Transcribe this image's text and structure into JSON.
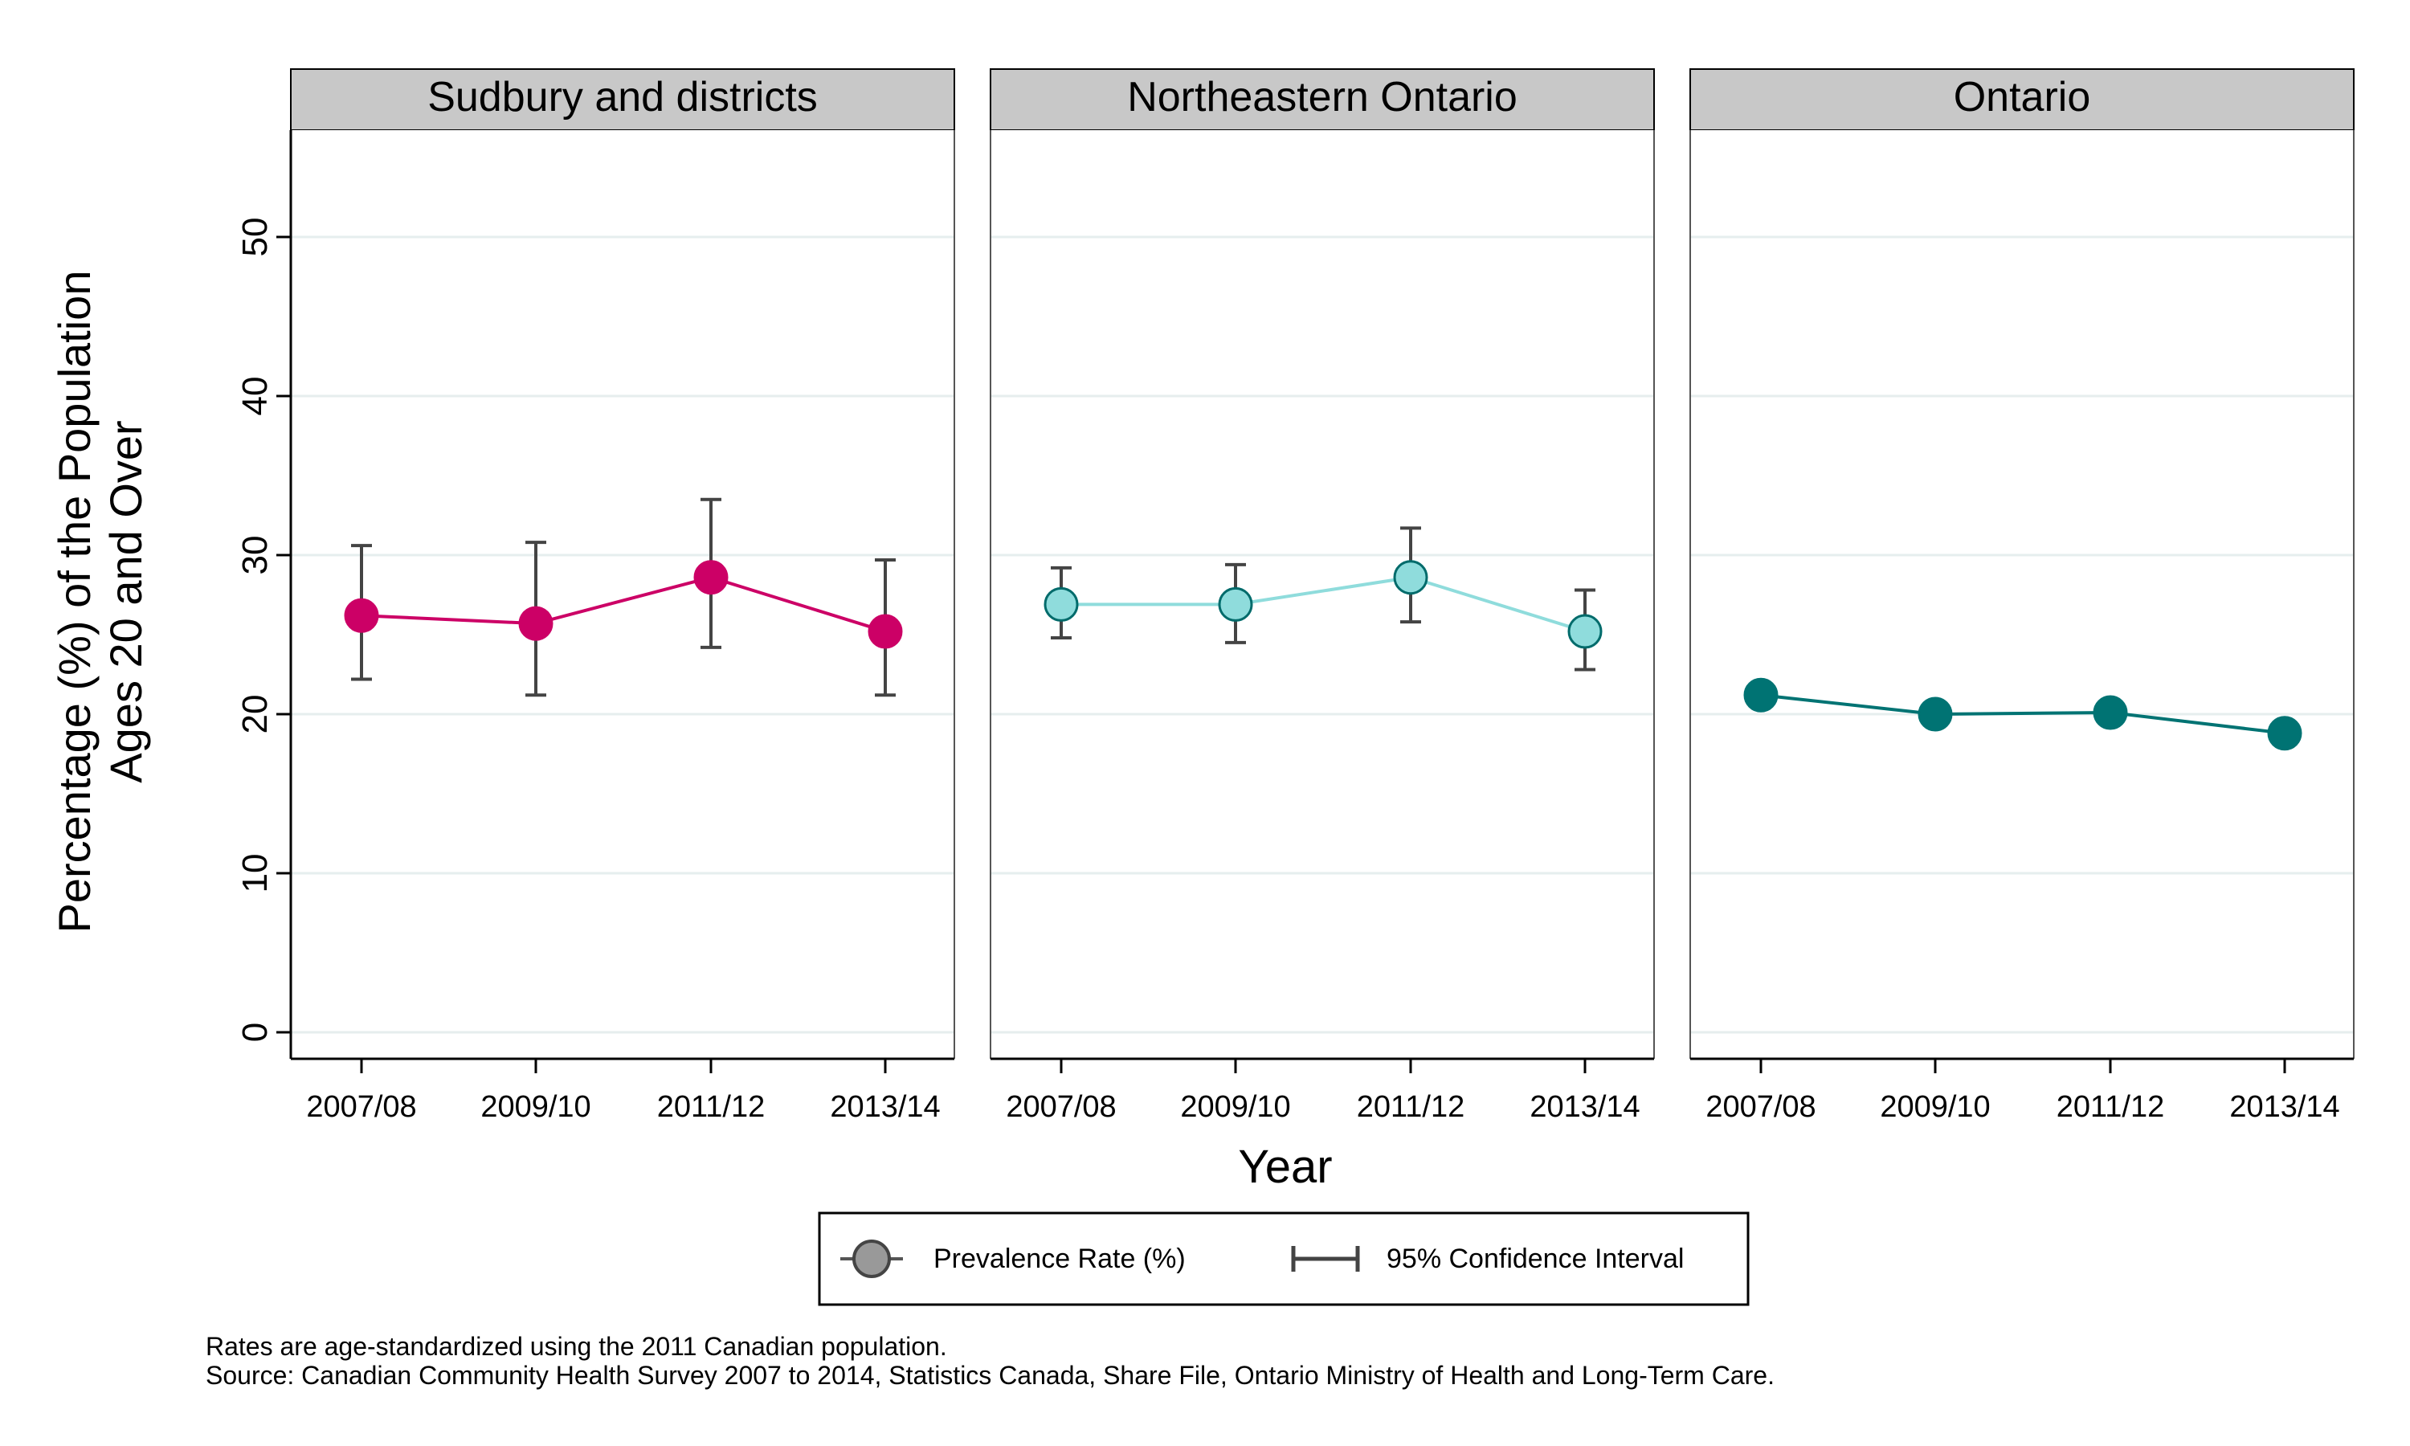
{
  "chart_data": {
    "type": "line",
    "panels": [
      {
        "name": "Sudbury and districts",
        "color": "#cc0066",
        "marker_fill": "#cc0066",
        "x": [
          "2007/08",
          "2009/10",
          "2011/12",
          "2013/14"
        ],
        "values": [
          26.2,
          25.7,
          28.6,
          25.2
        ],
        "ci_low": [
          22.2,
          21.2,
          24.2,
          21.2
        ],
        "ci_high": [
          30.6,
          30.8,
          33.5,
          29.7
        ]
      },
      {
        "name": "Northeastern Ontario",
        "color": "#8fdcdc",
        "marker_fill": "#8fdcdc",
        "marker_stroke": "#006b6b",
        "x": [
          "2007/08",
          "2009/10",
          "2011/12",
          "2013/14"
        ],
        "values": [
          26.9,
          26.9,
          28.6,
          25.2
        ],
        "ci_low": [
          24.8,
          24.5,
          25.8,
          22.8
        ],
        "ci_high": [
          29.2,
          29.4,
          31.7,
          27.8
        ]
      },
      {
        "name": "Ontario",
        "color": "#007373",
        "marker_fill": "#007373",
        "x": [
          "2007/08",
          "2009/10",
          "2011/12",
          "2013/14"
        ],
        "values": [
          21.2,
          20.0,
          20.1,
          18.8
        ],
        "ci_low": [],
        "ci_high": []
      }
    ],
    "xlabel": "Year",
    "ylabel_line1": "Percentage (%) of the Population",
    "ylabel_line2": "Ages 20 and Over",
    "ylim": [
      0,
      55
    ],
    "yticks": [
      0,
      10,
      20,
      30,
      40,
      50
    ],
    "grid": true,
    "legend": {
      "placement": "bottom",
      "entries": [
        "Prevalence Rate (%)",
        "95% Confidence Interval"
      ]
    }
  },
  "notes": {
    "line1": "Rates are age-standardized using the 2011 Canadian population.",
    "line2": "Source: Canadian Community Health Survey 2007 to 2014, Statistics Canada, Share File, Ontario Ministry of Health and Long-Term Care."
  }
}
